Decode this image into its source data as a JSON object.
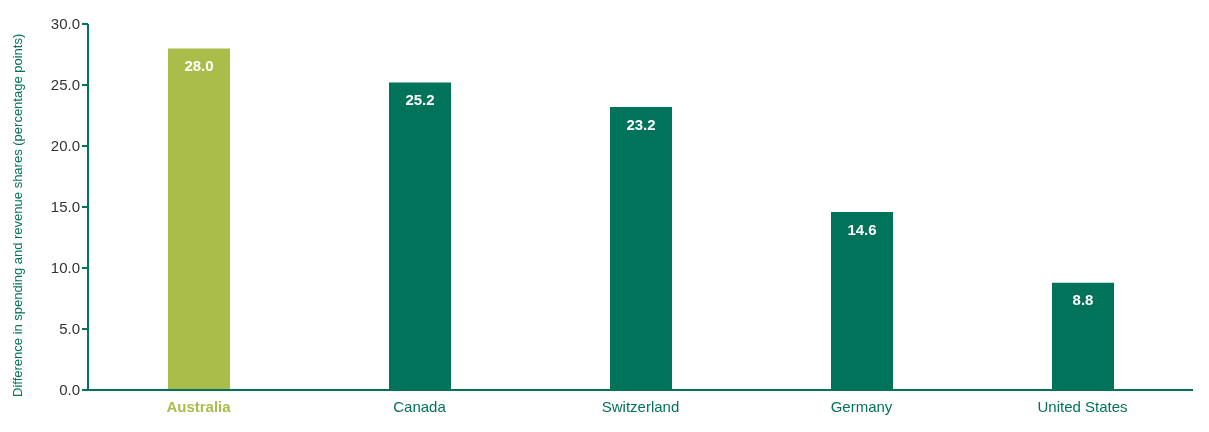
{
  "chart_data": {
    "type": "bar",
    "ylabel": "Difference in spending and revenue shares (percentage points)",
    "categories": [
      "Australia",
      "Canada",
      "Switzerland",
      "Germany",
      "United States"
    ],
    "values": [
      28.0,
      25.2,
      23.2,
      14.6,
      8.8
    ],
    "colors": [
      "#aabd4a",
      "#00735a",
      "#00735a",
      "#00735a",
      "#00735a"
    ],
    "ylim": [
      0,
      30
    ],
    "yticks": [
      {
        "value": 0,
        "label": "0.0"
      },
      {
        "value": 5,
        "label": "5.0"
      },
      {
        "value": 10,
        "label": "10.0"
      },
      {
        "value": 15,
        "label": "15.0"
      },
      {
        "value": 20,
        "label": "20.0"
      },
      {
        "value": 25,
        "label": "25.0"
      },
      {
        "value": 30,
        "label": "30.0"
      }
    ],
    "value_labels": [
      "28.0",
      "25.2",
      "23.2",
      "14.6",
      "8.8"
    ],
    "grid": false,
    "legend": false
  }
}
